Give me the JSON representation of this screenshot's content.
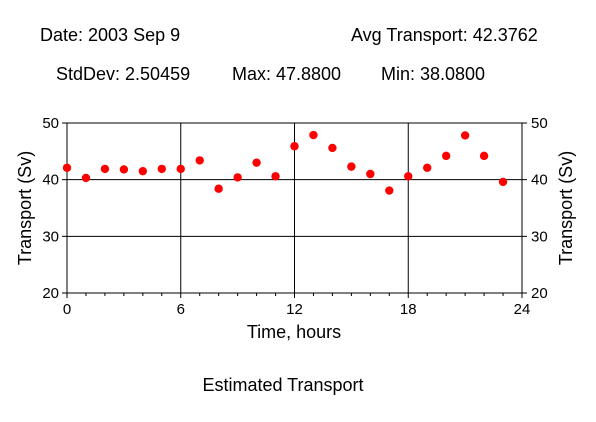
{
  "header": {
    "date": "Date: 2003 Sep 9",
    "avg": "Avg Transport: 42.3762",
    "stddev": "StdDev: 2.50459",
    "max": "Max: 47.8800",
    "min": "Min: 38.0800"
  },
  "caption": "Estimated Transport",
  "colors": {
    "point": "#ff0000",
    "axis": "#000000",
    "background": "#ffffff"
  },
  "chart_data": {
    "type": "scatter",
    "title": "Estimated Transport",
    "xlabel": "Time, hours",
    "ylabel": "Transport (Sv)",
    "y2label": "Transport (Sv)",
    "xlim": [
      0,
      24
    ],
    "ylim": [
      20,
      50
    ],
    "x_ticks": [
      0,
      6,
      12,
      18,
      24
    ],
    "y_ticks": [
      20,
      30,
      40,
      50
    ],
    "x_tick_labels": [
      "0",
      "6",
      "12",
      "18",
      "24"
    ],
    "y_tick_labels": [
      "20",
      "30",
      "40",
      "50"
    ],
    "grid": true,
    "x": [
      0,
      1,
      2,
      3,
      4,
      5,
      6,
      7,
      8,
      9,
      10,
      11,
      12,
      13,
      14,
      15,
      16,
      17,
      18,
      19,
      20,
      21,
      22,
      23
    ],
    "values": [
      42.1,
      40.3,
      41.9,
      41.8,
      41.5,
      41.9,
      41.9,
      43.4,
      38.4,
      40.4,
      43.0,
      40.6,
      45.9,
      47.88,
      45.6,
      42.3,
      41.0,
      38.08,
      40.6,
      42.1,
      44.2,
      47.8,
      44.2,
      39.6
    ]
  }
}
